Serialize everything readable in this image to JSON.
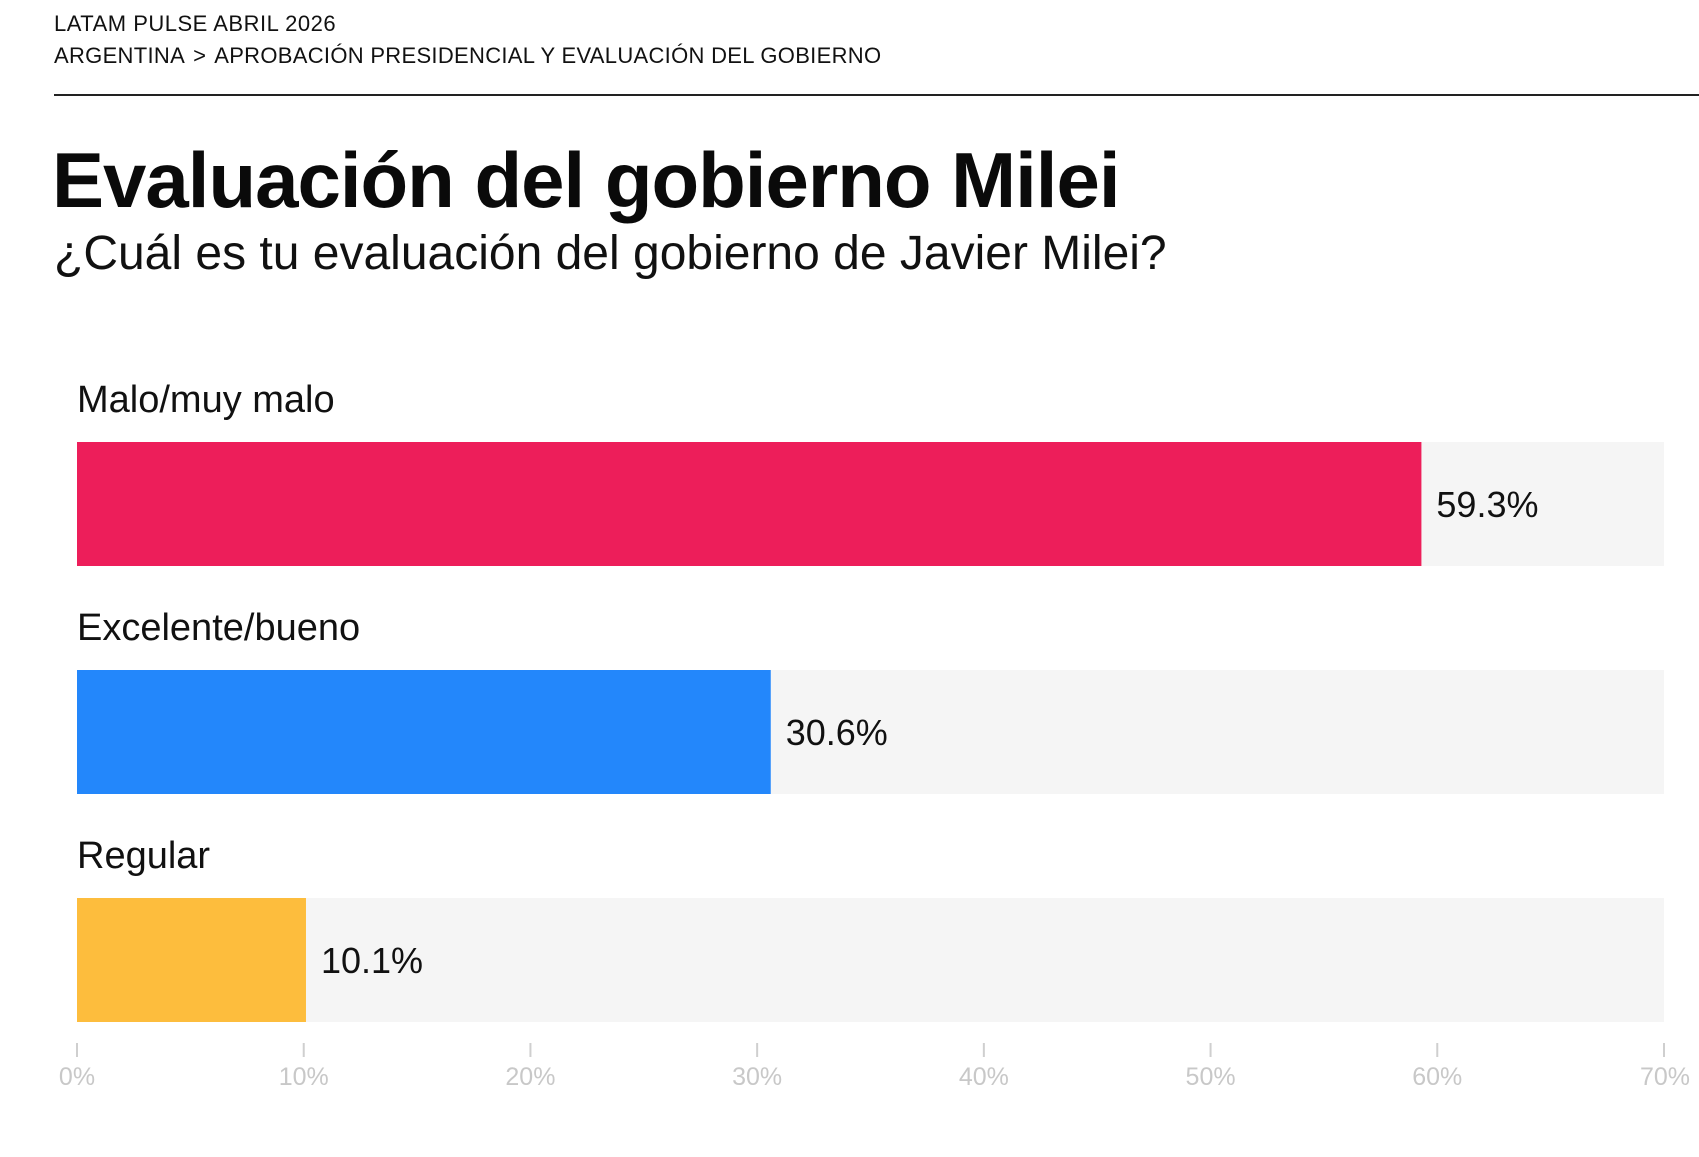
{
  "header": {
    "eyebrow": "LATAM PULSE ABRIL 2026",
    "breadcrumb_country": "ARGENTINA",
    "breadcrumb_separator": ">",
    "breadcrumb_section": "APROBACIÓN PRESIDENCIAL Y EVALUACIÓN DEL GOBIERNO"
  },
  "title": "Evaluación del gobierno Milei",
  "subtitle": "¿Cuál es tu evaluación del gobierno de Javier Milei?",
  "chart_data": {
    "type": "bar",
    "orientation": "horizontal",
    "title": "Evaluación del gobierno Milei",
    "subtitle": "¿Cuál es tu evaluación del gobierno de Javier Milei?",
    "categories": [
      "Malo/muy malo",
      "Excelente/bueno",
      "Regular"
    ],
    "values": [
      59.3,
      30.6,
      10.1
    ],
    "value_labels": [
      "59.3%",
      "30.6%",
      "10.1%"
    ],
    "colors": [
      "#ed1e5a",
      "#2387fb",
      "#fdbd3d"
    ],
    "track_color": "#f5f5f5",
    "xlim": [
      0,
      70
    ],
    "xticks": [
      0,
      10,
      20,
      30,
      40,
      50,
      60,
      70
    ],
    "xtick_labels": [
      "0%",
      "10%",
      "20%",
      "30%",
      "40%",
      "50%",
      "60%",
      "70%"
    ],
    "xlabel": "",
    "ylabel": "",
    "grid": false,
    "legend": "none"
  }
}
